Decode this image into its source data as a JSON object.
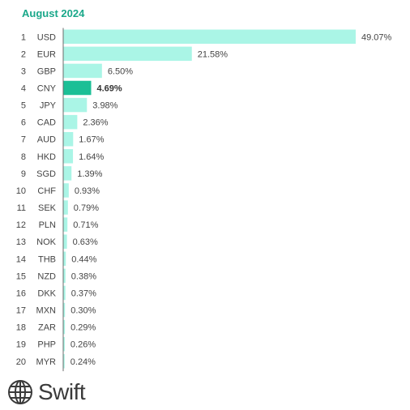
{
  "chart_data": {
    "type": "bar",
    "orientation": "horizontal",
    "title": "August 2024",
    "ranks": [
      "1",
      "2",
      "3",
      "4",
      "5",
      "6",
      "7",
      "8",
      "9",
      "10",
      "11",
      "12",
      "13",
      "14",
      "15",
      "16",
      "17",
      "18",
      "19",
      "20"
    ],
    "categories": [
      "USD",
      "EUR",
      "GBP",
      "CNY",
      "JPY",
      "CAD",
      "AUD",
      "HKD",
      "SGD",
      "CHF",
      "SEK",
      "PLN",
      "NOK",
      "THB",
      "NZD",
      "DKK",
      "MXN",
      "ZAR",
      "PHP",
      "MYR"
    ],
    "values": [
      49.07,
      21.58,
      6.5,
      4.69,
      3.98,
      2.36,
      1.67,
      1.64,
      1.39,
      0.93,
      0.79,
      0.71,
      0.63,
      0.44,
      0.38,
      0.37,
      0.3,
      0.29,
      0.26,
      0.24
    ],
    "value_labels": [
      "49.07%",
      "21.58%",
      "6.50%",
      "4.69%",
      "3.98%",
      "2.36%",
      "1.67%",
      "1.64%",
      "1.39%",
      "0.93%",
      "0.79%",
      "0.71%",
      "0.63%",
      "0.44%",
      "0.38%",
      "0.37%",
      "0.30%",
      "0.29%",
      "0.26%",
      "0.24%"
    ],
    "highlight": "CNY",
    "xlim": [
      0,
      49.07
    ],
    "grid": false,
    "colors": {
      "bar": "#aaf5e6",
      "highlight": "#1bbf96",
      "title": "#1aa88a"
    }
  },
  "logo": {
    "text": "Swift",
    "icon": "globe-icon"
  }
}
